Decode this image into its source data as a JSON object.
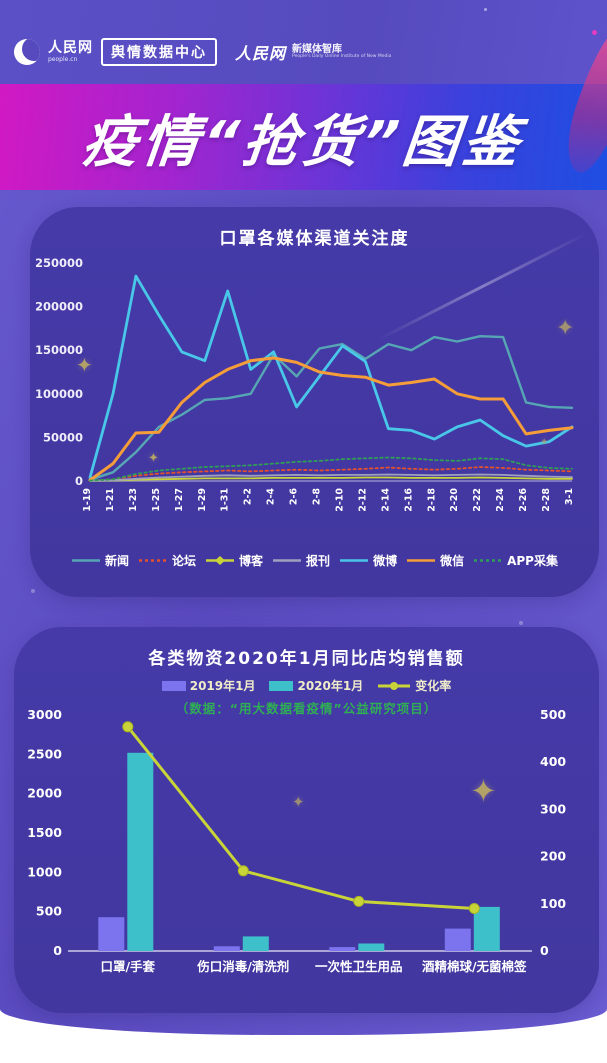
{
  "header": {
    "brand1_cn": "人民网",
    "brand1_en": "people.cn",
    "badge": "舆情数据中心",
    "brand2_cn": "人民网",
    "brand2_sub": "新媒体智库",
    "brand2_en": "People's Daily Online Institute of New Media"
  },
  "banner": {
    "title": "疫情“抢货”图鉴"
  },
  "colors": {
    "background": "#5a4cc0",
    "panel": "#43389f",
    "banner_left": "#d119c3",
    "banner_right": "#1e4ee2",
    "sparkle": "#b2a268",
    "source_note_green": "#2fae54",
    "axis_text": "#f0eefb"
  },
  "chart_data": [
    {
      "type": "line",
      "title": "口罩各媒体渠道关注度",
      "x": [
        "1-19",
        "1-21",
        "1-23",
        "1-25",
        "1-27",
        "1-29",
        "1-31",
        "2-2",
        "2-4",
        "2-6",
        "2-8",
        "2-10",
        "2-12",
        "2-14",
        "2-16",
        "2-18",
        "2-20",
        "2-22",
        "2-24",
        "2-26",
        "2-28",
        "3-1"
      ],
      "ylim": [
        0,
        250000
      ],
      "yticks": [
        0,
        50000,
        100000,
        150000,
        200000,
        250000
      ],
      "grid": false,
      "legend_position": "bottom",
      "series": [
        {
          "name": "新闻",
          "color": "#57a6b4",
          "dash": "",
          "width": 2.4,
          "values": [
            1500,
            10000,
            33000,
            62000,
            76000,
            93000,
            95000,
            100000,
            145000,
            120000,
            152000,
            157000,
            140000,
            157000,
            150000,
            165000,
            160000,
            166000,
            165000,
            90000,
            85000,
            84000
          ]
        },
        {
          "name": "论坛",
          "color": "#e2502e",
          "dash": "2.5,3",
          "width": 1.8,
          "values": [
            300,
            2000,
            6000,
            8500,
            10000,
            11000,
            12000,
            11000,
            12000,
            13000,
            12000,
            13000,
            14000,
            15500,
            14000,
            13000,
            14000,
            16000,
            15000,
            13000,
            12000,
            11000
          ]
        },
        {
          "name": "博客",
          "color": "#c9d438",
          "dash": "",
          "width": 1.8,
          "values": [
            100,
            500,
            1500,
            2000,
            2500,
            3000,
            3000,
            3000,
            3500,
            3500,
            3500,
            3500,
            4000,
            4000,
            3500,
            3500,
            3500,
            4000,
            3500,
            3000,
            2500,
            2500
          ]
        },
        {
          "name": "报刊",
          "color": "#a0a0bd",
          "dash": "",
          "width": 1.8,
          "values": [
            200,
            800,
            2500,
            4000,
            5000,
            6000,
            6500,
            6000,
            6500,
            7000,
            6500,
            7000,
            7000,
            7500,
            7000,
            6500,
            7000,
            7500,
            7000,
            6000,
            5000,
            4500
          ]
        },
        {
          "name": "微博",
          "color": "#49c7e8",
          "dash": "",
          "width": 2.8,
          "values": [
            4000,
            100000,
            235000,
            190000,
            148000,
            138000,
            218000,
            128000,
            148000,
            85000,
            120000,
            155000,
            137000,
            60000,
            58000,
            48000,
            62000,
            70000,
            52000,
            40000,
            45000,
            62000
          ]
        },
        {
          "name": "微信",
          "color": "#f59d38",
          "dash": "",
          "width": 3,
          "values": [
            1000,
            20000,
            55000,
            56000,
            90000,
            113000,
            128000,
            138000,
            141000,
            136000,
            125000,
            121000,
            119000,
            110000,
            113000,
            117000,
            100000,
            94000,
            94000,
            54000,
            58000,
            61000
          ]
        },
        {
          "name": "APP采集",
          "color": "#2f9e55",
          "dash": "2.5,3",
          "width": 1.8,
          "values": [
            500,
            2000,
            8000,
            12000,
            14000,
            16000,
            17000,
            18000,
            20000,
            22000,
            23000,
            25000,
            26000,
            27000,
            26000,
            24000,
            23000,
            26000,
            25000,
            18000,
            15000,
            14000
          ]
        }
      ]
    },
    {
      "type": "bar",
      "title": "各类物资2020年1月同比店均销售额",
      "subtitle": "（数据：“用大数据看疫情”公益研究项目）",
      "categories": [
        "口罩/手套",
        "伤口消毒/清洗剂",
        "一次性卫生用品",
        "酒精棉球/无菌棉签"
      ],
      "bar_series": [
        {
          "name": "2019年1月",
          "color": "#7b74ee",
          "values": [
            430,
            60,
            50,
            285
          ]
        },
        {
          "name": "2020年1月",
          "color": "#3ec0ca",
          "values": [
            2520,
            185,
            95,
            560
          ]
        }
      ],
      "line_series": {
        "name": "变化率",
        "color": "#c9d438",
        "axis": "right",
        "values": [
          475,
          170,
          105,
          90
        ]
      },
      "left_ylim": [
        0,
        3000
      ],
      "left_yticks": [
        0,
        500,
        1000,
        1500,
        2000,
        2500,
        3000
      ],
      "right_ylim": [
        0,
        500
      ],
      "right_yticks": [
        0,
        100,
        200,
        300,
        400,
        500
      ],
      "grid": false,
      "legend_position": "top"
    }
  ]
}
